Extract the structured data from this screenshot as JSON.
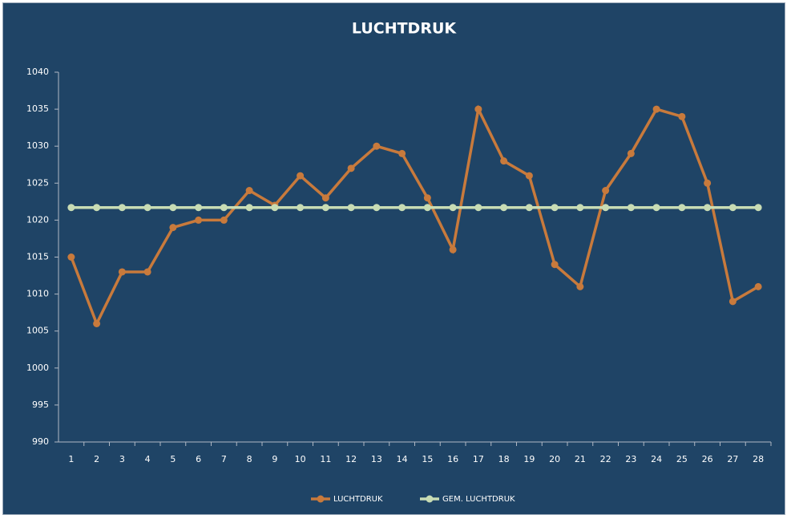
{
  "chart_data": {
    "type": "line",
    "title": "LUCHTDRUK",
    "categories": [
      "1",
      "2",
      "3",
      "4",
      "5",
      "6",
      "7",
      "8",
      "9",
      "10",
      "11",
      "12",
      "13",
      "14",
      "15",
      "16",
      "17",
      "18",
      "19",
      "20",
      "21",
      "22",
      "23",
      "24",
      "25",
      "26",
      "27",
      "28"
    ],
    "series": [
      {
        "name": "LUCHTDRUK",
        "color": "#c87a3c",
        "values": [
          1015,
          1006,
          1013,
          1013,
          1019,
          1020,
          1020,
          1024,
          1022,
          1026,
          1023,
          1027,
          1030,
          1029,
          1023,
          1016,
          1035,
          1028,
          1026,
          1014,
          1011,
          1024,
          1029,
          1035,
          1034,
          1025,
          1009,
          1011
        ]
      },
      {
        "name": "GEM. LUCHTDRUK",
        "color": "#c8dcb4",
        "values": [
          1021.7,
          1021.7,
          1021.7,
          1021.7,
          1021.7,
          1021.7,
          1021.7,
          1021.7,
          1021.7,
          1021.7,
          1021.7,
          1021.7,
          1021.7,
          1021.7,
          1021.7,
          1021.7,
          1021.7,
          1021.7,
          1021.7,
          1021.7,
          1021.7,
          1021.7,
          1021.7,
          1021.7,
          1021.7,
          1021.7,
          1021.7,
          1021.7
        ]
      }
    ],
    "ylim": [
      990,
      1040
    ],
    "yticks": [
      990,
      995,
      1000,
      1005,
      1010,
      1015,
      1020,
      1025,
      1030,
      1035,
      1040
    ],
    "grid": false,
    "legend": "bottom"
  }
}
